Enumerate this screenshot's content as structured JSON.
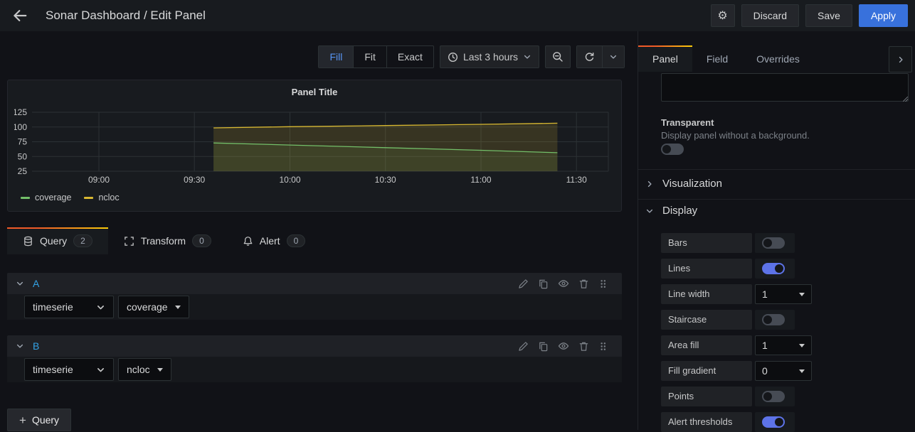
{
  "topbar": {
    "title": "Sonar Dashboard / Edit Panel",
    "buttons": {
      "discard": "Discard",
      "save": "Save",
      "apply": "Apply"
    }
  },
  "toolbar": {
    "size_modes": [
      "Fill",
      "Fit",
      "Exact"
    ],
    "active_size_mode": "Fill",
    "time_range": "Last 3 hours"
  },
  "panel": {
    "title": "Panel Title"
  },
  "chart_data": {
    "type": "line",
    "title": "Panel Title",
    "x_ticks": [
      "09:00",
      "09:30",
      "10:00",
      "10:30",
      "11:00",
      "11:30"
    ],
    "y_ticks": [
      25,
      50,
      75,
      100,
      125
    ],
    "ylim": [
      25,
      125
    ],
    "x_domain": [
      "08:39",
      "11:40"
    ],
    "grid": true,
    "legend_position": "bottom-left",
    "series": [
      {
        "name": "coverage",
        "color": "#73bf69",
        "fill": "rgba(115,191,105,0.10)",
        "x": [
          "09:36",
          "10:00",
          "10:30",
          "11:00",
          "11:24"
        ],
        "values": [
          73,
          69.5,
          65,
          60.5,
          56.5
        ]
      },
      {
        "name": "ncloc",
        "color": "#d8b831",
        "fill": "rgba(216,184,49,0.16)",
        "x": [
          "09:36",
          "10:00",
          "10:30",
          "11:00",
          "11:24"
        ],
        "values": [
          98.5,
          100.5,
          102.5,
          104.5,
          106.5
        ]
      }
    ]
  },
  "query_tabs": {
    "query": {
      "label": "Query",
      "count": "2"
    },
    "transform": {
      "label": "Transform",
      "count": "0"
    },
    "alert": {
      "label": "Alert",
      "count": "0"
    }
  },
  "queries": [
    {
      "ref": "A",
      "datasource": "timeserie",
      "metric": "coverage"
    },
    {
      "ref": "B",
      "datasource": "timeserie",
      "metric": "ncloc"
    }
  ],
  "add_query": {
    "label": "Query"
  },
  "sidebar": {
    "tabs": [
      "Panel",
      "Field",
      "Overrides"
    ],
    "active_tab": "Panel",
    "description_value": "",
    "transparent": {
      "label": "Transparent",
      "description": "Display panel without a background.",
      "state": "off"
    },
    "sections": {
      "visualization": "Visualization",
      "display": "Display"
    },
    "display_options": [
      {
        "label": "Bars",
        "type": "toggle",
        "state": "off"
      },
      {
        "label": "Lines",
        "type": "toggle",
        "state": "on"
      },
      {
        "label": "Line width",
        "type": "select",
        "value": "1"
      },
      {
        "label": "Staircase",
        "type": "toggle",
        "state": "off"
      },
      {
        "label": "Area fill",
        "type": "select",
        "value": "1"
      },
      {
        "label": "Fill gradient",
        "type": "select",
        "value": "0"
      },
      {
        "label": "Points",
        "type": "toggle",
        "state": "off"
      },
      {
        "label": "Alert thresholds",
        "type": "toggle",
        "state": "on"
      }
    ]
  }
}
